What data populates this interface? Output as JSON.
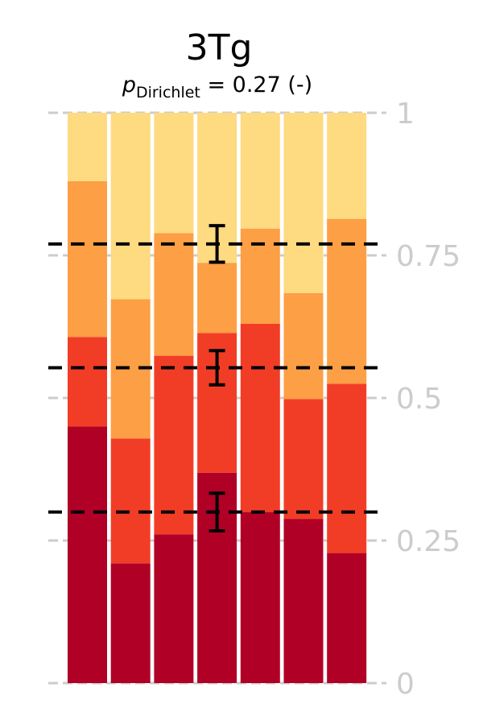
{
  "chart_data": {
    "type": "bar",
    "stacked": true,
    "title": "3Tg",
    "subtitle": {
      "p_symbol": "p",
      "p_subscript": "Dirichlet",
      "rest": " = 0.27 (-)"
    },
    "xlabel": "",
    "ylabel": "",
    "ylim": [
      0,
      1
    ],
    "yticks": [
      0,
      0.25,
      0.5,
      0.75,
      1
    ],
    "ytick_labels": [
      "0",
      "0.25",
      "0.5",
      "0.75",
      "1"
    ],
    "grid": true,
    "colors": [
      "#b10026",
      "#f23d26",
      "#fd9f44",
      "#feda80"
    ],
    "segments_per_bar": [
      [
        0.45,
        0.157,
        0.273,
        0.12
      ],
      [
        0.21,
        0.219,
        0.244,
        0.327
      ],
      [
        0.261,
        0.313,
        0.215,
        0.211
      ],
      [
        0.369,
        0.245,
        0.123,
        0.263
      ],
      [
        0.3,
        0.33,
        0.167,
        0.203
      ],
      [
        0.288,
        0.21,
        0.186,
        0.316
      ],
      [
        0.228,
        0.297,
        0.289,
        0.186
      ]
    ],
    "reference_lines": [
      0.77,
      0.553,
      0.3
    ],
    "error_bars": {
      "bar_index": 3,
      "center": [
        0.77,
        0.553,
        0.3
      ],
      "half_width": [
        0.032,
        0.03,
        0.033
      ]
    }
  }
}
